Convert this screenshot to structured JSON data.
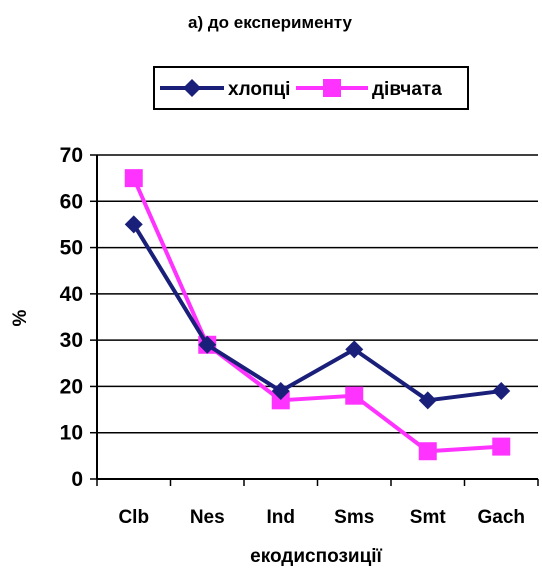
{
  "chart_data": {
    "type": "line",
    "title": "а) до експерименту",
    "xlabel": "екодиспозиції",
    "ylabel": "%",
    "categories": [
      "Clb",
      "Nes",
      "Ind",
      "Sms",
      "Smt",
      "Gach"
    ],
    "ylim": [
      0,
      70
    ],
    "yticks": [
      0,
      10,
      20,
      30,
      40,
      50,
      60,
      70
    ],
    "grid": true,
    "legend": "top",
    "series": [
      {
        "name": "хлопці",
        "values": [
          55,
          29,
          19,
          28,
          17,
          19
        ],
        "color": "#1a1f7a",
        "marker": "diamond"
      },
      {
        "name": "дівчата",
        "values": [
          65,
          29,
          17,
          18,
          6,
          7
        ],
        "color": "#ff33ff",
        "marker": "square"
      }
    ]
  }
}
